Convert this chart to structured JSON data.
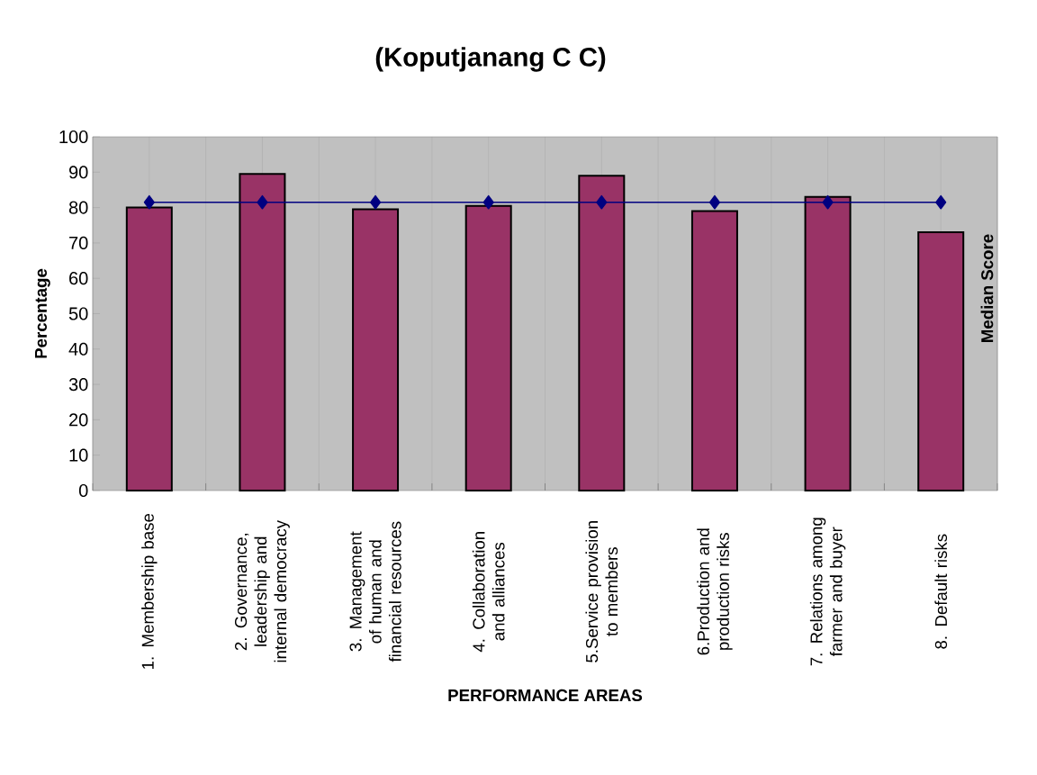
{
  "chart_data": {
    "type": "bar",
    "title": "(Koputjanang C C)",
    "xlabel": "PERFORMANCE AREAS",
    "ylabel": "Percentage",
    "y2label": "Median Score",
    "categories": [
      "1. Membership base",
      "2. Governance, leadership and internal democracy",
      "3. Management of human and financial resources",
      "4. Collaboration and alliances",
      "5.Service provision to members",
      "6.Production and production risks",
      "7. Relations among farmer and buyer",
      "8. Default risks"
    ],
    "series": [
      {
        "color": "#993366",
        "values": [
          80,
          89.5,
          79.5,
          80.5,
          89,
          79,
          83,
          73
        ]
      },
      {
        "type": "line",
        "color": "#000080",
        "marker": "diamond",
        "values": [
          81.5,
          81.5,
          81.5,
          81.5,
          81.5,
          81.5,
          81.5,
          81.5
        ]
      }
    ],
    "ylim": [
      0,
      100
    ],
    "yticks": [
      0,
      10,
      20,
      30,
      40,
      50,
      60,
      70,
      80,
      90,
      100
    ],
    "grid": "x"
  }
}
